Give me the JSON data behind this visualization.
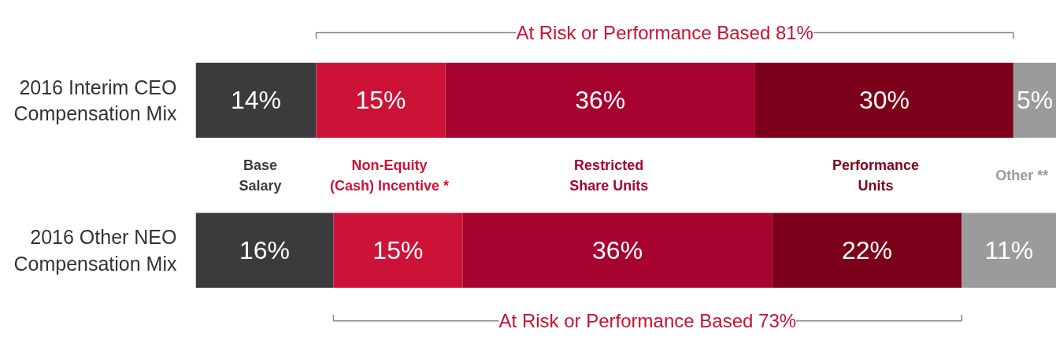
{
  "chart_data": {
    "type": "bar",
    "orientation": "horizontal",
    "stacked": true,
    "categories": [
      "2016 Interim CEO Compensation Mix",
      "2016 Other NEO Compensation Mix"
    ],
    "xlim": [
      0,
      100
    ],
    "tick_labels": "y",
    "grid": false,
    "series": [
      {
        "name": "Base\nSalary",
        "color": "#3b3b3d",
        "values": [
          14,
          16
        ],
        "value_labels": [
          "14%",
          "16%"
        ]
      },
      {
        "name": "Non-Equity\n(Cash) Incentive *",
        "color": "#cc1236",
        "values": [
          15,
          15
        ],
        "value_labels": [
          "15%",
          "15%"
        ]
      },
      {
        "name": "Restricted\nShare Units",
        "color": "#a6032f",
        "values": [
          36,
          36
        ],
        "value_labels": [
          "36%",
          "36%"
        ]
      },
      {
        "name": "Performance\nUnits",
        "color": "#7c0019",
        "values": [
          30,
          22
        ],
        "value_labels": [
          "30%",
          "22%"
        ]
      },
      {
        "name": "Other **",
        "color": "#9b9b9d",
        "values": [
          5,
          11
        ],
        "value_labels": [
          "5%",
          "11%"
        ]
      }
    ],
    "annotations": [
      "At Risk or Performance Based 81%",
      "At Risk or Performance Based 73%"
    ]
  }
}
